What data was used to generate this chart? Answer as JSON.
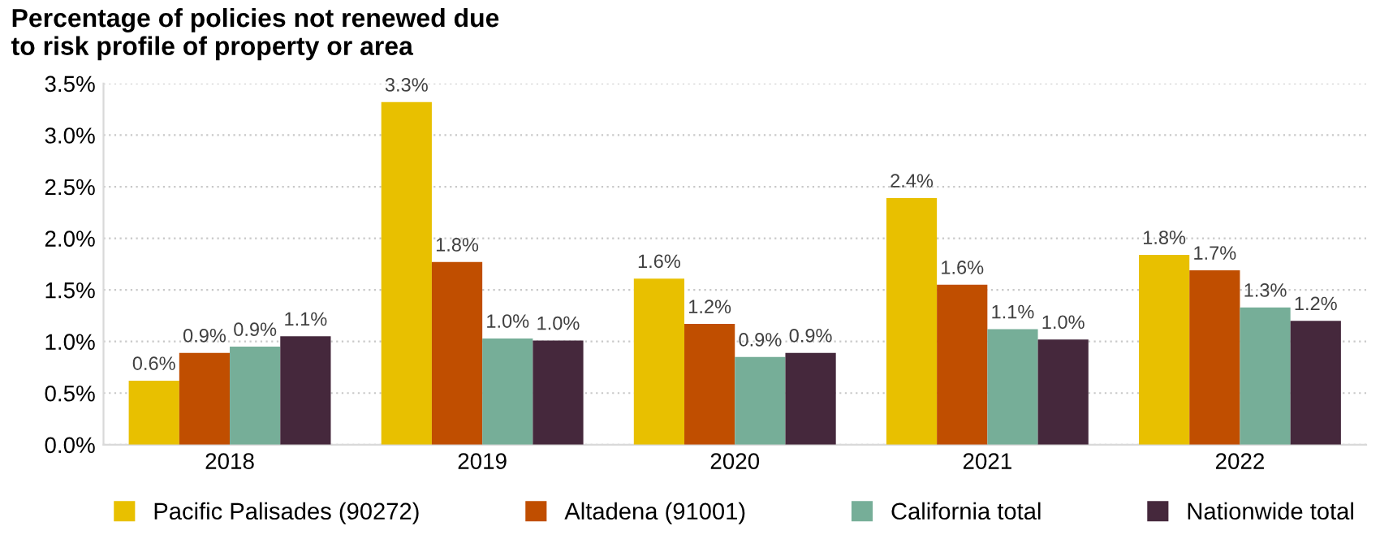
{
  "chart_data": {
    "type": "bar",
    "title": "Percentage of policies not renewed due\nto risk profile of property or area",
    "categories": [
      "2018",
      "2019",
      "2020",
      "2021",
      "2022"
    ],
    "series": [
      {
        "name": "Pacific Palisades (90272)",
        "color": "#e8c000",
        "values": [
          0.62,
          3.32,
          1.61,
          2.39,
          1.84
        ],
        "value_labels": [
          "0.6%",
          "3.3%",
          "1.6%",
          "2.4%",
          "1.8%"
        ]
      },
      {
        "name": "Altadena (91001)",
        "color": "#c04e00",
        "values": [
          0.89,
          1.77,
          1.17,
          1.55,
          1.69
        ],
        "value_labels": [
          "0.9%",
          "1.8%",
          "1.2%",
          "1.6%",
          "1.7%"
        ]
      },
      {
        "name": "California total",
        "color": "#76ae98",
        "values": [
          0.95,
          1.03,
          0.85,
          1.12,
          1.33
        ],
        "value_labels": [
          "0.9%",
          "1.0%",
          "0.9%",
          "1.1%",
          "1.3%"
        ]
      },
      {
        "name": "Nationwide total",
        "color": "#45283c",
        "values": [
          1.05,
          1.01,
          0.89,
          1.02,
          1.2
        ],
        "value_labels": [
          "1.1%",
          "1.0%",
          "0.9%",
          "1.0%",
          "1.2%"
        ]
      }
    ],
    "ylim": [
      0,
      3.5
    ],
    "yticks": [
      {
        "value": 0,
        "label": "0.0%"
      },
      {
        "value": 0.5,
        "label": "0.5%"
      },
      {
        "value": 1,
        "label": "1.0%"
      },
      {
        "value": 1.5,
        "label": "1.5%"
      },
      {
        "value": 2,
        "label": "2.0%"
      },
      {
        "value": 2.5,
        "label": "2.5%"
      },
      {
        "value": 3,
        "label": "3.0%"
      },
      {
        "value": 3.5,
        "label": "3.5%"
      }
    ],
    "grid": "y",
    "legend": "bottom"
  }
}
